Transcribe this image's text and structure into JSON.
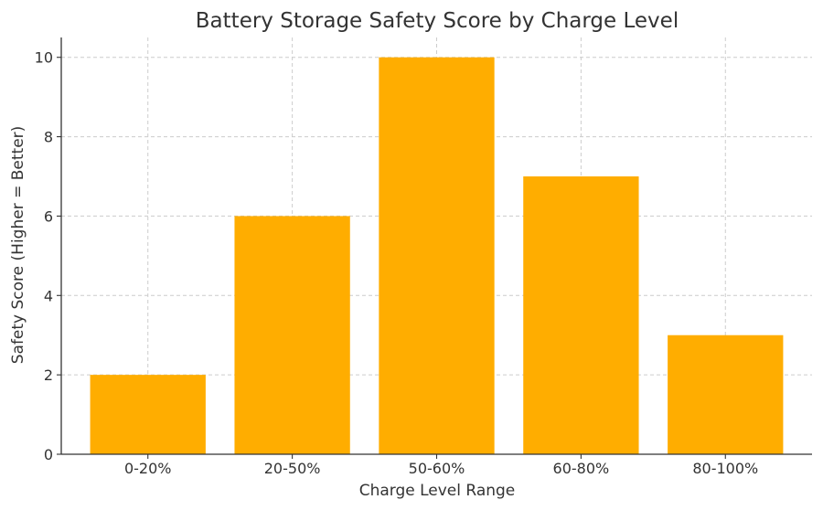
{
  "chart_data": {
    "type": "bar",
    "title": "Battery Storage Safety Score by Charge Level",
    "xlabel": "Charge Level Range",
    "ylabel": "Safety Score (Higher = Better)",
    "categories": [
      "0-20%",
      "20-50%",
      "50-60%",
      "60-80%",
      "80-100%"
    ],
    "values": [
      2,
      6,
      10,
      7,
      3
    ],
    "ylim": [
      0,
      10.5
    ],
    "yticks": [
      0,
      2,
      4,
      6,
      8,
      10
    ],
    "grid": true,
    "bar_color": "#ffad00"
  }
}
